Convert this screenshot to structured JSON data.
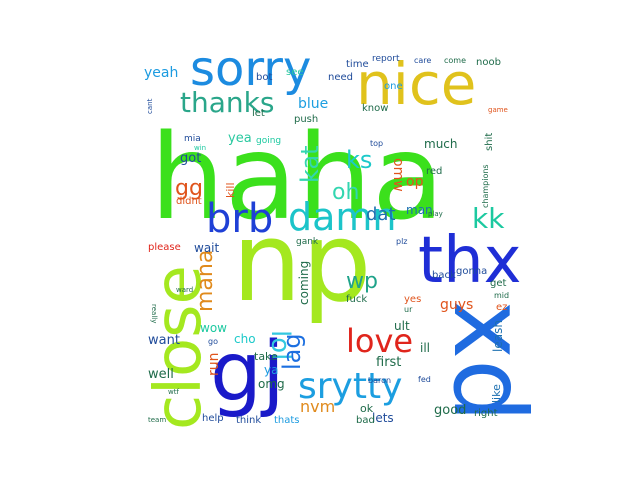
{
  "words": [
    {
      "text": "haha",
      "color": "#3be01c"
    },
    {
      "text": "np",
      "color": "#a4e81f"
    },
    {
      "text": "xd",
      "color": "#1f6be0"
    },
    {
      "text": "gj",
      "color": "#1a1ac9"
    },
    {
      "text": "close",
      "color": "#a4e81f"
    },
    {
      "text": "thx",
      "color": "#1f2ed6"
    },
    {
      "text": "nice",
      "color": "#e0c21c"
    },
    {
      "text": "sorry",
      "color": "#1c8be0"
    },
    {
      "text": "brb",
      "color": "#1f40d6"
    },
    {
      "text": "damn",
      "color": "#1cc4c9"
    },
    {
      "text": "srytty",
      "color": "#1c9ee0"
    },
    {
      "text": "love",
      "color": "#e0251c"
    },
    {
      "text": "thanks",
      "color": "#2aa68a"
    },
    {
      "text": "lol",
      "color": "#33c8e0"
    },
    {
      "text": "mana",
      "color": "#e08a1c"
    },
    {
      "text": "lag",
      "color": "#1c6fe0"
    },
    {
      "text": "kk",
      "color": "#1cc9a0"
    },
    {
      "text": "kat",
      "color": "#33d6b0"
    },
    {
      "text": "ks",
      "color": "#1cc9c9"
    },
    {
      "text": "wp",
      "color": "#1fa38a"
    },
    {
      "text": "oh",
      "color": "#33d6b0"
    },
    {
      "text": "gg",
      "color": "#e0541c"
    },
    {
      "text": "dat",
      "color": "#1c6fb0"
    },
    {
      "text": "yeah",
      "color": "#1c9be0"
    },
    {
      "text": "blue",
      "color": "#1c9ee0"
    },
    {
      "text": "omw",
      "color": "#e0541c"
    },
    {
      "text": "much",
      "color": "#1f6b4a"
    },
    {
      "text": "man",
      "color": "#1c6fb0"
    },
    {
      "text": "nvm",
      "color": "#e08a1c"
    },
    {
      "text": "got",
      "color": "#1f4b9a"
    },
    {
      "text": "wait",
      "color": "#1f4b9a"
    },
    {
      "text": "run",
      "color": "#e0541c"
    },
    {
      "text": "well",
      "color": "#1f6b4a"
    },
    {
      "text": "want",
      "color": "#1f4b9a"
    },
    {
      "text": "wow",
      "color": "#1cc9a0"
    },
    {
      "text": "cho",
      "color": "#1cc9c9"
    },
    {
      "text": "coming",
      "color": "#1f6b4a"
    },
    {
      "text": "ult",
      "color": "#1f6b4a"
    },
    {
      "text": "first",
      "color": "#1f6b4a"
    },
    {
      "text": "ill",
      "color": "#1f6b4a"
    },
    {
      "text": "leash",
      "color": "#1c6fb0"
    },
    {
      "text": "like",
      "color": "#1c6fb0"
    },
    {
      "text": "good",
      "color": "#1f6b4a"
    },
    {
      "text": "right",
      "color": "#1f6b4a"
    },
    {
      "text": "lets",
      "color": "#1f4b9a"
    },
    {
      "text": "ok",
      "color": "#1f6b4a"
    },
    {
      "text": "guys",
      "color": "#e0541c"
    },
    {
      "text": "yea",
      "color": "#2ac9a0"
    },
    {
      "text": "op",
      "color": "#e0541c"
    },
    {
      "text": "ya",
      "color": "#1c9be0"
    },
    {
      "text": "omg",
      "color": "#1f6b4a"
    },
    {
      "text": "take",
      "color": "#1f6b4a"
    },
    {
      "text": "time",
      "color": "#1f4b9a"
    },
    {
      "text": "need",
      "color": "#1f4b9a"
    },
    {
      "text": "bot",
      "color": "#1f4b9a"
    },
    {
      "text": "see",
      "color": "#2ac9a0"
    },
    {
      "text": "one",
      "color": "#1c9be0"
    },
    {
      "text": "report",
      "color": "#1f4b9a"
    },
    {
      "text": "care",
      "color": "#1f4b9a"
    },
    {
      "text": "come",
      "color": "#1f6b4a"
    },
    {
      "text": "noob",
      "color": "#1f6b4a"
    },
    {
      "text": "know",
      "color": "#1f6b4a"
    },
    {
      "text": "let",
      "color": "#1f6b4a"
    },
    {
      "text": "push",
      "color": "#1f6b4a"
    },
    {
      "text": "top",
      "color": "#1f4b9a"
    },
    {
      "text": "going",
      "color": "#1cc9a0"
    },
    {
      "text": "red",
      "color": "#1f6b4a"
    },
    {
      "text": "kill",
      "color": "#e0541c"
    },
    {
      "text": "didnt",
      "color": "#e0541c"
    },
    {
      "text": "please",
      "color": "#e0251c"
    },
    {
      "text": "gank",
      "color": "#1f6b4a"
    },
    {
      "text": "plz",
      "color": "#1f4b9a"
    },
    {
      "text": "back",
      "color": "#1f4b9a"
    },
    {
      "text": "gonna",
      "color": "#1f4b9a"
    },
    {
      "text": "get",
      "color": "#1f6b4a"
    },
    {
      "text": "mid",
      "color": "#1f6b4a"
    },
    {
      "text": "ez",
      "color": "#e0541c"
    },
    {
      "text": "ur",
      "color": "#1f6b4a"
    },
    {
      "text": "yes",
      "color": "#e0541c"
    },
    {
      "text": "fuck",
      "color": "#1f6b4a"
    },
    {
      "text": "play",
      "color": "#1f6b4a"
    },
    {
      "text": "shit",
      "color": "#1f6b4a"
    },
    {
      "text": "champions",
      "color": "#1f6b4a"
    },
    {
      "text": "game",
      "color": "#e0541c"
    },
    {
      "text": "help",
      "color": "#1f4b9a"
    },
    {
      "text": "think",
      "color": "#1f4b9a"
    },
    {
      "text": "thats",
      "color": "#1c9be0"
    },
    {
      "text": "bad",
      "color": "#1f6b4a"
    },
    {
      "text": "baron",
      "color": "#1f4b9a"
    },
    {
      "text": "fed",
      "color": "#1f4b9a"
    },
    {
      "text": "mia",
      "color": "#1f4b9a"
    },
    {
      "text": "win",
      "color": "#1cc9a0"
    },
    {
      "text": "team",
      "color": "#1f6b4a"
    },
    {
      "text": "wtf",
      "color": "#1f6b4a"
    },
    {
      "text": "ward",
      "color": "#1f6b4a"
    },
    {
      "text": "really",
      "color": "#1f6b4a"
    },
    {
      "text": "cant",
      "color": "#1f4b9a"
    },
    {
      "text": "go",
      "color": "#1f4b9a"
    }
  ]
}
